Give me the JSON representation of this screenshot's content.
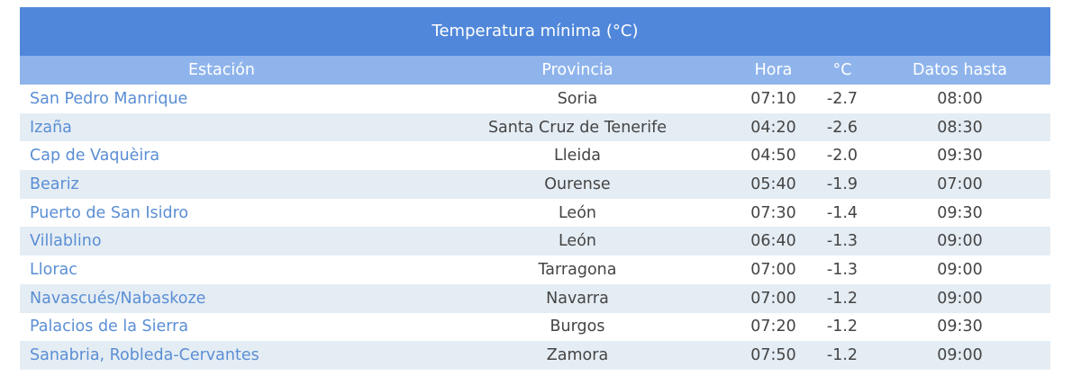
{
  "table": {
    "title": "Temperatura mínima (°C)",
    "headers": [
      "Estación",
      "Provincia",
      "Hora",
      "°C",
      "Datos hasta"
    ],
    "rows": [
      [
        "San Pedro Manrique",
        "Soria",
        "07:10",
        "-2.7",
        "08:00"
      ],
      [
        "Izaña",
        "Santa Cruz de Tenerife",
        "04:20",
        "-2.6",
        "08:30"
      ],
      [
        "Cap de Vaquèira",
        "Lleida",
        "04:50",
        "-2.0",
        "09:30"
      ],
      [
        "Beariz",
        "Ourense",
        "05:40",
        "-1.9",
        "07:00"
      ],
      [
        "Puerto de San Isidro",
        "León",
        "07:30",
        "-1.4",
        "09:30"
      ],
      [
        "Villablino",
        "León",
        "06:40",
        "-1.3",
        "09:00"
      ],
      [
        "Llorac",
        "Tarragona",
        "07:00",
        "-1.3",
        "09:00"
      ],
      [
        "Navascués/Nabaskoze",
        "Navarra",
        "07:00",
        "-1.2",
        "09:00"
      ],
      [
        "Palacios de la Sierra",
        "Burgos",
        "07:20",
        "-1.2",
        "09:30"
      ],
      [
        "Sanabria, Robleda-Cervantes",
        "Zamora",
        "07:50",
        "-1.2",
        "09:00"
      ]
    ]
  }
}
